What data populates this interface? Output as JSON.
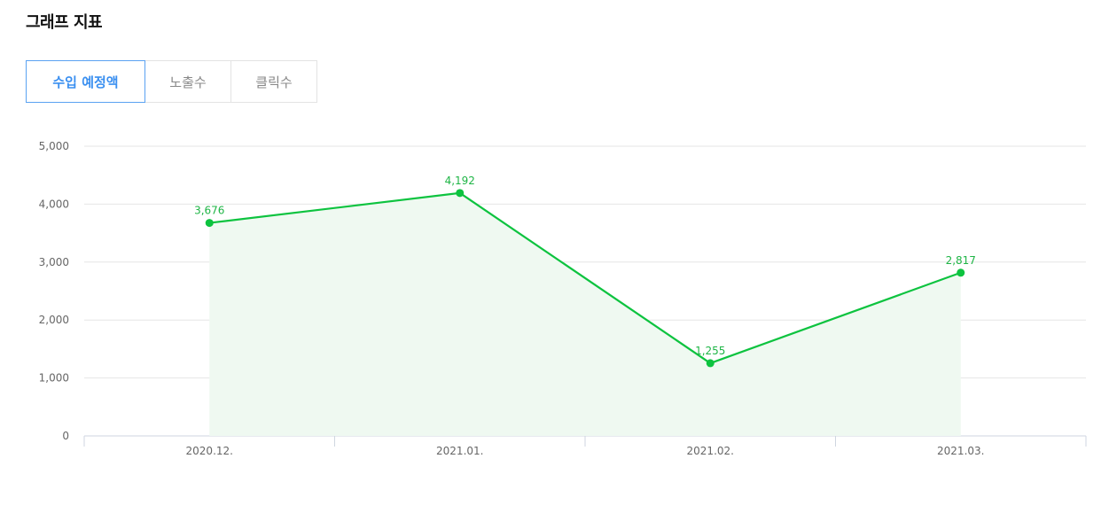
{
  "title": "그래프 지표",
  "tabs": [
    {
      "label": "수입 예정액",
      "active": true
    },
    {
      "label": "노출수",
      "active": false
    },
    {
      "label": "클릭수",
      "active": false
    }
  ],
  "colors": {
    "line": "#0dc33f",
    "area": "#eff9f1",
    "grid": "#e6e6e6",
    "active_tab": "#3a8ff0"
  },
  "chart_data": {
    "type": "area",
    "categories": [
      "2020.12.",
      "2021.01.",
      "2021.02.",
      "2021.03."
    ],
    "values": [
      3676,
      4192,
      1255,
      2817
    ],
    "value_labels": [
      "3,676",
      "4,192",
      "1,255",
      "2,817"
    ],
    "y_ticks": [
      0,
      1000,
      2000,
      3000,
      4000,
      5000
    ],
    "y_tick_labels": [
      "0",
      "1,000",
      "2,000",
      "3,000",
      "4,000",
      "5,000"
    ],
    "ylim": [
      0,
      5000
    ],
    "grid": true
  }
}
